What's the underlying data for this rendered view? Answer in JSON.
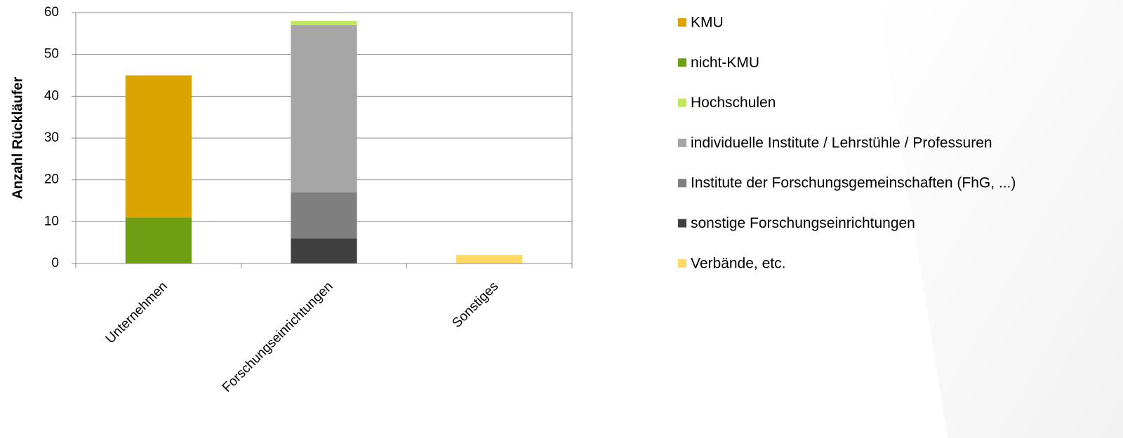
{
  "chart_data": {
    "type": "stacked_bar",
    "y_label": "Anzahl Rückläufer",
    "categories": [
      "Unternehmen",
      "Forschungseinrichtungen",
      "Sonstiges"
    ],
    "series": [
      {
        "name": "KMU",
        "color": "#dba400",
        "values": [
          34,
          null,
          null
        ]
      },
      {
        "name": "nicht-KMU",
        "color": "#6e9e14",
        "values": [
          11,
          null,
          null
        ]
      },
      {
        "name": "Hochschulen",
        "color": "#bfe85c",
        "values": [
          null,
          1,
          null
        ]
      },
      {
        "name": "individuelle Institute / Lehrstühle / Professuren",
        "color": "#a6a6a6",
        "values": [
          null,
          40,
          null
        ]
      },
      {
        "name": "Institute der Forschungsgemeinschaften (FhG, ...)",
        "color": "#7f7f7f",
        "values": [
          null,
          11,
          null
        ]
      },
      {
        "name": "sonstige Forschungseinrichtungen",
        "color": "#3f3f3f",
        "values": [
          null,
          6,
          null
        ]
      },
      {
        "name": "Verbände, etc.",
        "color": "#ffd966",
        "values": [
          null,
          null,
          2
        ]
      }
    ],
    "ylim": [
      0,
      60
    ],
    "yticks": [
      0,
      10,
      20,
      30,
      40,
      50,
      60
    ],
    "grid": true
  }
}
